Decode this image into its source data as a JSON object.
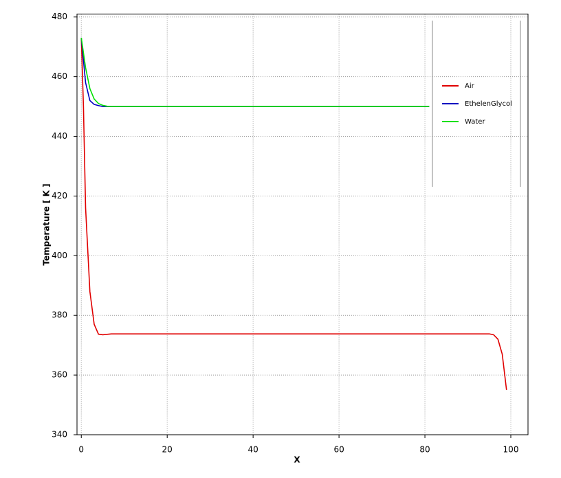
{
  "chart_data": {
    "type": "line",
    "xlabel": "X",
    "ylabel": "Temperature [ K ]",
    "xlim": [
      -1,
      104
    ],
    "ylim": [
      340,
      481
    ],
    "xticks": [
      0,
      20,
      40,
      60,
      80,
      100
    ],
    "yticks": [
      340,
      360,
      380,
      400,
      420,
      440,
      460,
      480
    ],
    "grid": true,
    "legend": "upper right",
    "series": [
      {
        "name": "Air",
        "color": "#e00000",
        "x": [
          0,
          0.5,
          1,
          2,
          3,
          4,
          5,
          7,
          95,
          96,
          97,
          98,
          99
        ],
        "values": [
          473,
          450,
          416,
          388,
          377,
          373.7,
          373.5,
          373.8,
          373.8,
          373.5,
          372,
          367,
          355
        ]
      },
      {
        "name": "EthelenGlycol",
        "color": "#0000c0",
        "x": [
          0,
          1,
          2,
          3,
          4,
          5,
          81
        ],
        "values": [
          473,
          458,
          452,
          450.7,
          450.3,
          450,
          450
        ]
      },
      {
        "name": "Water",
        "color": "#00e000",
        "x": [
          0,
          1,
          2,
          3,
          4,
          5,
          6,
          7,
          81
        ],
        "values": [
          473,
          463,
          456,
          452.5,
          451,
          450.4,
          450.1,
          450,
          450
        ]
      }
    ]
  }
}
